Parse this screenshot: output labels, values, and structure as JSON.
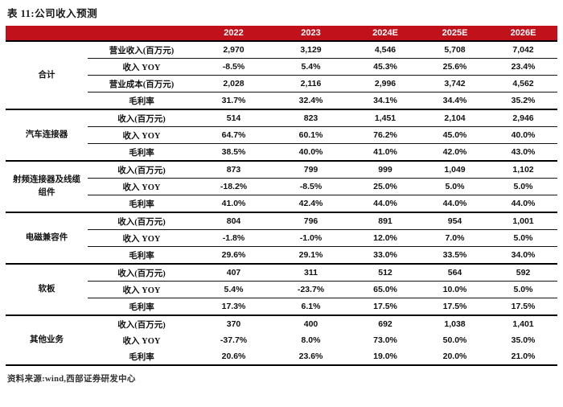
{
  "title": "表 11:公司收入预测",
  "source": "资料来源:wind,西部证券研发中心",
  "colors": {
    "header_bg": "#c1121c",
    "header_text": "#ffffff",
    "rule_black": "#000000"
  },
  "table": {
    "columns": [
      "2022",
      "2023",
      "2024E",
      "2025E",
      "2026E"
    ],
    "groups": [
      {
        "name": "合计",
        "rows": [
          {
            "label": "营业收入(百万元)",
            "values": [
              "2,970",
              "3,129",
              "4,546",
              "5,708",
              "7,042"
            ]
          },
          {
            "label": "收入 YOY",
            "values": [
              "-8.5%",
              "5.4%",
              "45.3%",
              "25.6%",
              "23.4%"
            ]
          },
          {
            "label": "营业成本(百万元)",
            "values": [
              "2,028",
              "2,116",
              "2,996",
              "3,742",
              "4,562"
            ]
          },
          {
            "label": "毛利率",
            "values": [
              "31.7%",
              "32.4%",
              "34.1%",
              "34.4%",
              "35.2%"
            ]
          }
        ]
      },
      {
        "name": "汽车连接器",
        "rows": [
          {
            "label": "收入(百万元)",
            "values": [
              "514",
              "823",
              "1,451",
              "2,104",
              "2,946"
            ]
          },
          {
            "label": "收入 YOY",
            "values": [
              "64.7%",
              "60.1%",
              "76.2%",
              "45.0%",
              "40.0%"
            ]
          },
          {
            "label": "毛利率",
            "values": [
              "38.5%",
              "40.0%",
              "41.0%",
              "42.0%",
              "43.0%"
            ]
          }
        ]
      },
      {
        "name": "射频连接器及线缆组件",
        "rows": [
          {
            "label": "收入(百万元)",
            "values": [
              "873",
              "799",
              "999",
              "1,049",
              "1,102"
            ]
          },
          {
            "label": "收入 YOY",
            "values": [
              "-18.2%",
              "-8.5%",
              "25.0%",
              "5.0%",
              "5.0%"
            ]
          },
          {
            "label": "毛利率",
            "values": [
              "41.0%",
              "42.4%",
              "44.0%",
              "44.0%",
              "44.0%"
            ]
          }
        ]
      },
      {
        "name": "电磁兼容件",
        "rows": [
          {
            "label": "收入(百万元)",
            "values": [
              "804",
              "796",
              "891",
              "954",
              "1,001"
            ]
          },
          {
            "label": "收入 YOY",
            "values": [
              "-1.8%",
              "-1.0%",
              "12.0%",
              "7.0%",
              "5.0%"
            ]
          },
          {
            "label": "毛利率",
            "values": [
              "29.6%",
              "29.1%",
              "33.0%",
              "33.5%",
              "34.0%"
            ]
          }
        ]
      },
      {
        "name": "软板",
        "rows": [
          {
            "label": "收入(百万元)",
            "values": [
              "407",
              "311",
              "512",
              "564",
              "592"
            ]
          },
          {
            "label": "收入 YOY",
            "values": [
              "5.4%",
              "-23.7%",
              "65.0%",
              "10.0%",
              "5.0%"
            ]
          },
          {
            "label": "毛利率",
            "values": [
              "17.3%",
              "6.1%",
              "17.5%",
              "17.5%",
              "17.5%"
            ]
          }
        ]
      },
      {
        "name": "其他业务",
        "separators": false,
        "rows": [
          {
            "label": "收入(百万元)",
            "values": [
              "370",
              "400",
              "692",
              "1,038",
              "1,401"
            ]
          },
          {
            "label": "收入 YOY",
            "values": [
              "-37.7%",
              "8.0%",
              "73.0%",
              "50.0%",
              "35.0%"
            ]
          },
          {
            "label": "毛利率",
            "values": [
              "20.6%",
              "23.6%",
              "19.0%",
              "20.0%",
              "21.0%"
            ]
          }
        ]
      }
    ]
  }
}
